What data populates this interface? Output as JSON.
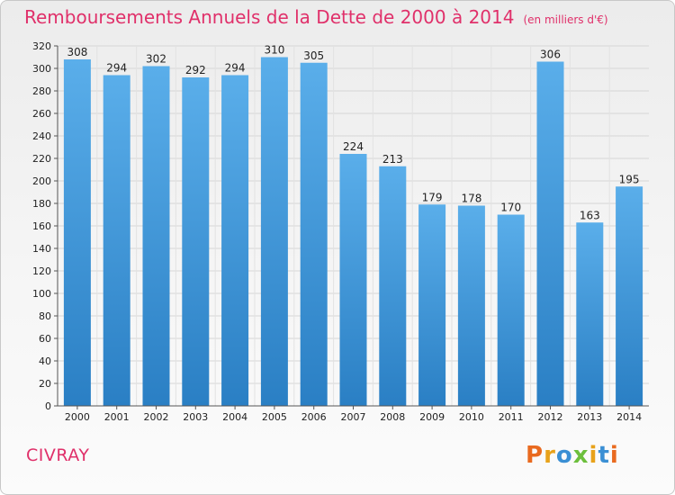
{
  "colors": {
    "title": "#e0306a",
    "location": "#e0306a",
    "bar_light": "#5aaeea",
    "bar_dark": "#2a7fc4",
    "grid": "#d6d6d6",
    "axis_text": "#222222",
    "logo": [
      "#e96a1f",
      "#e8a21a",
      "#3a8fd4",
      "#6cbf3c",
      "#e8a21a",
      "#3a8fd4",
      "#e96a1f"
    ]
  },
  "header": {
    "title": "Remboursements Annuels de la Dette de 2000 à 2014",
    "subtitle": "(en milliers d'€)"
  },
  "location": "CIVRAY",
  "logo": {
    "text": "Proxiti",
    "letters": [
      "P",
      "r",
      "o",
      "x",
      "i",
      "t",
      "i"
    ]
  },
  "chart_data": {
    "type": "bar",
    "title": "Remboursements Annuels de la Dette de 2000 à 2014",
    "subtitle": "(en milliers d'€)",
    "categories": [
      "2000",
      "2001",
      "2002",
      "2003",
      "2004",
      "2005",
      "2006",
      "2007",
      "2008",
      "2009",
      "2010",
      "2011",
      "2012",
      "2013",
      "2014"
    ],
    "values": [
      308,
      294,
      302,
      292,
      294,
      310,
      305,
      224,
      213,
      179,
      178,
      170,
      306,
      163,
      195
    ],
    "ylim": [
      0,
      320
    ],
    "yticks": [
      0,
      20,
      40,
      60,
      80,
      100,
      120,
      140,
      160,
      180,
      200,
      220,
      240,
      260,
      280,
      300,
      320
    ],
    "grid": true,
    "data_labels": true
  }
}
